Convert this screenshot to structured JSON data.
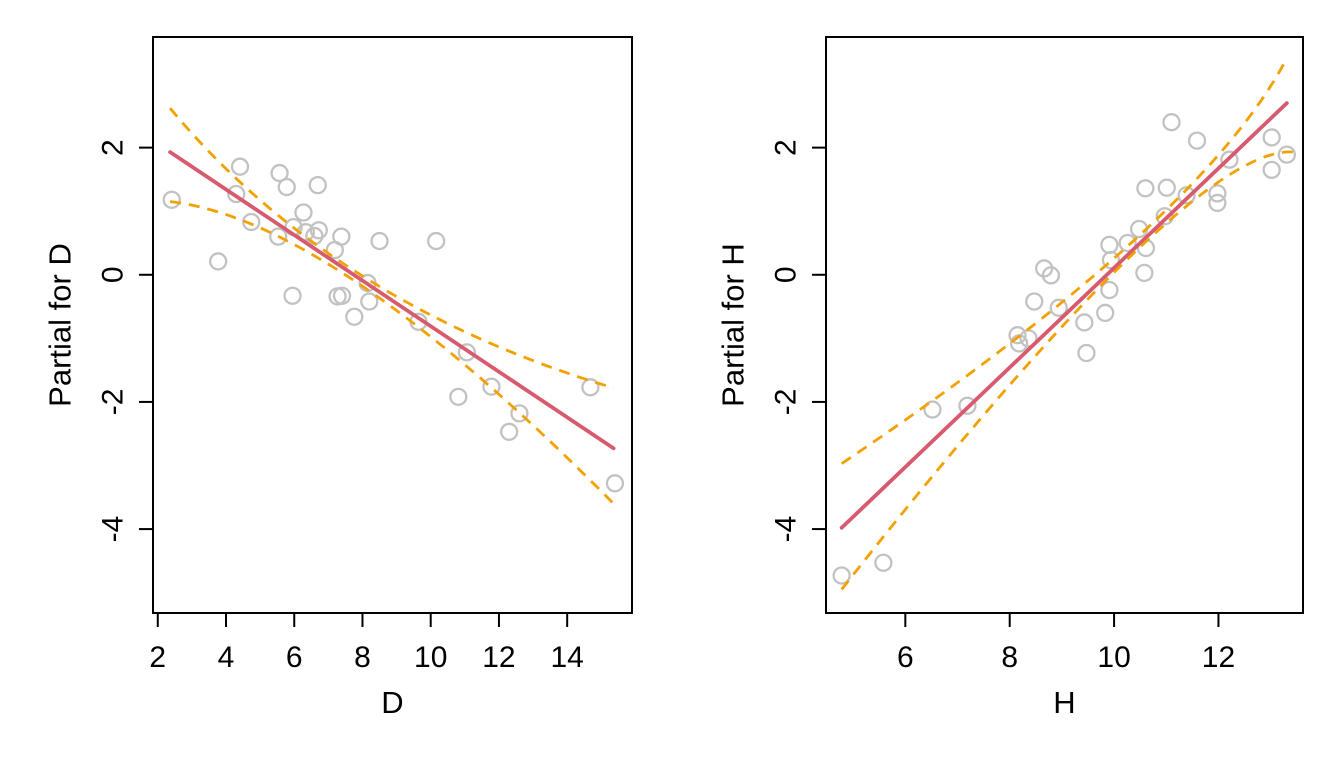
{
  "page": {
    "background": "#ffffff"
  },
  "colors": {
    "fit_line": "#d75a6e",
    "confidence_band": "#f2a100",
    "points": "#c2c2c2",
    "axis": "#000000"
  },
  "chart_data": [
    {
      "type": "scatter",
      "title": "",
      "xlabel": "D",
      "ylabel": "Partial for D",
      "xlim": [
        1.86,
        15.9
      ],
      "ylim": [
        -5.32,
        3.74
      ],
      "xticks": [
        2,
        4,
        6,
        8,
        10,
        12,
        14
      ],
      "yticks": [
        -4,
        -2,
        0,
        2
      ],
      "grid": false,
      "legend": null,
      "series": [
        {
          "name": "partial-residual-points",
          "kind": "points",
          "marker": "open-circle",
          "color": "#c2c2c2",
          "points": [
            [
              2.41,
              1.18
            ],
            [
              4.41,
              1.7
            ],
            [
              4.3,
              1.27
            ],
            [
              5.57,
              1.6
            ],
            [
              5.78,
              1.38
            ],
            [
              6.69,
              1.41
            ],
            [
              4.74,
              0.83
            ],
            [
              5.53,
              0.6
            ],
            [
              5.98,
              0.75
            ],
            [
              6.27,
              0.98
            ],
            [
              6.34,
              0.67
            ],
            [
              6.59,
              0.61
            ],
            [
              6.72,
              0.7
            ],
            [
              7.19,
              0.39
            ],
            [
              7.38,
              0.6
            ],
            [
              8.5,
              0.53
            ],
            [
              10.16,
              0.53
            ],
            [
              3.77,
              0.21
            ],
            [
              5.95,
              -0.33
            ],
            [
              7.27,
              -0.34
            ],
            [
              7.4,
              -0.33
            ],
            [
              8.15,
              -0.13
            ],
            [
              8.2,
              -0.42
            ],
            [
              7.76,
              -0.66
            ],
            [
              9.64,
              -0.74
            ],
            [
              11.06,
              -1.22
            ],
            [
              11.78,
              -1.76
            ],
            [
              10.81,
              -1.92
            ],
            [
              12.6,
              -2.18
            ],
            [
              12.3,
              -2.47
            ],
            [
              14.68,
              -1.77
            ],
            [
              15.4,
              -3.28
            ]
          ]
        },
        {
          "name": "term-fit-line",
          "kind": "line",
          "style": "solid",
          "color": "#d75a6e",
          "points": [
            [
              2.36,
              1.93
            ],
            [
              15.36,
              -2.73
            ]
          ]
        },
        {
          "name": "ci-upper",
          "kind": "curve",
          "style": "dashed",
          "color": "#f2a100",
          "points": [
            [
              2.36,
              2.62
            ],
            [
              8.0,
              -0.02
            ],
            [
              15.36,
              -1.78
            ]
          ]
        },
        {
          "name": "ci-lower",
          "kind": "curve",
          "style": "dashed",
          "color": "#f2a100",
          "points": [
            [
              2.36,
              1.15
            ],
            [
              8.0,
              -0.18
            ],
            [
              15.36,
              -3.6
            ]
          ]
        }
      ]
    },
    {
      "type": "scatter",
      "title": "",
      "xlabel": "H",
      "ylabel": "Partial for H",
      "xlim": [
        4.48,
        13.62
      ],
      "ylim": [
        -5.32,
        3.74
      ],
      "xticks": [
        6,
        8,
        10,
        12
      ],
      "yticks": [
        -4,
        -2,
        0,
        2
      ],
      "grid": false,
      "legend": null,
      "series": [
        {
          "name": "partial-residual-points",
          "kind": "points",
          "marker": "open-circle",
          "color": "#c2c2c2",
          "points": [
            [
              11.1,
              2.4
            ],
            [
              11.59,
              2.11
            ],
            [
              12.21,
              1.81
            ],
            [
              13.02,
              2.16
            ],
            [
              13.31,
              1.89
            ],
            [
              13.02,
              1.65
            ],
            [
              10.6,
              1.36
            ],
            [
              11.01,
              1.37
            ],
            [
              11.39,
              1.25
            ],
            [
              11.98,
              1.28
            ],
            [
              11.98,
              1.13
            ],
            [
              10.97,
              0.92
            ],
            [
              10.48,
              0.72
            ],
            [
              9.91,
              0.47
            ],
            [
              10.26,
              0.5
            ],
            [
              10.61,
              0.42
            ],
            [
              9.94,
              0.23
            ],
            [
              8.66,
              0.1
            ],
            [
              8.79,
              -0.01
            ],
            [
              10.58,
              0.03
            ],
            [
              9.91,
              -0.24
            ],
            [
              8.47,
              -0.42
            ],
            [
              8.94,
              -0.52
            ],
            [
              9.43,
              -0.75
            ],
            [
              9.83,
              -0.6
            ],
            [
              8.15,
              -0.95
            ],
            [
              8.18,
              -1.08
            ],
            [
              8.36,
              -1.0
            ],
            [
              9.47,
              -1.23
            ],
            [
              6.52,
              -2.12
            ],
            [
              7.19,
              -2.06
            ],
            [
              4.78,
              -4.73
            ],
            [
              5.58,
              -4.53
            ]
          ]
        },
        {
          "name": "term-fit-line",
          "kind": "line",
          "style": "solid",
          "color": "#d75a6e",
          "points": [
            [
              4.78,
              -3.98
            ],
            [
              13.31,
              2.7
            ]
          ]
        },
        {
          "name": "ci-upper",
          "kind": "curve",
          "style": "dashed",
          "color": "#f2a100",
          "points": [
            [
              4.78,
              -2.97
            ],
            [
              10.3,
              0.48
            ],
            [
              13.26,
              3.33
            ]
          ]
        },
        {
          "name": "ci-lower",
          "kind": "curve",
          "style": "dashed",
          "color": "#f2a100",
          "points": [
            [
              4.78,
              -4.95
            ],
            [
              10.3,
              0.28
            ],
            [
              13.45,
              1.93
            ]
          ]
        }
      ]
    }
  ]
}
